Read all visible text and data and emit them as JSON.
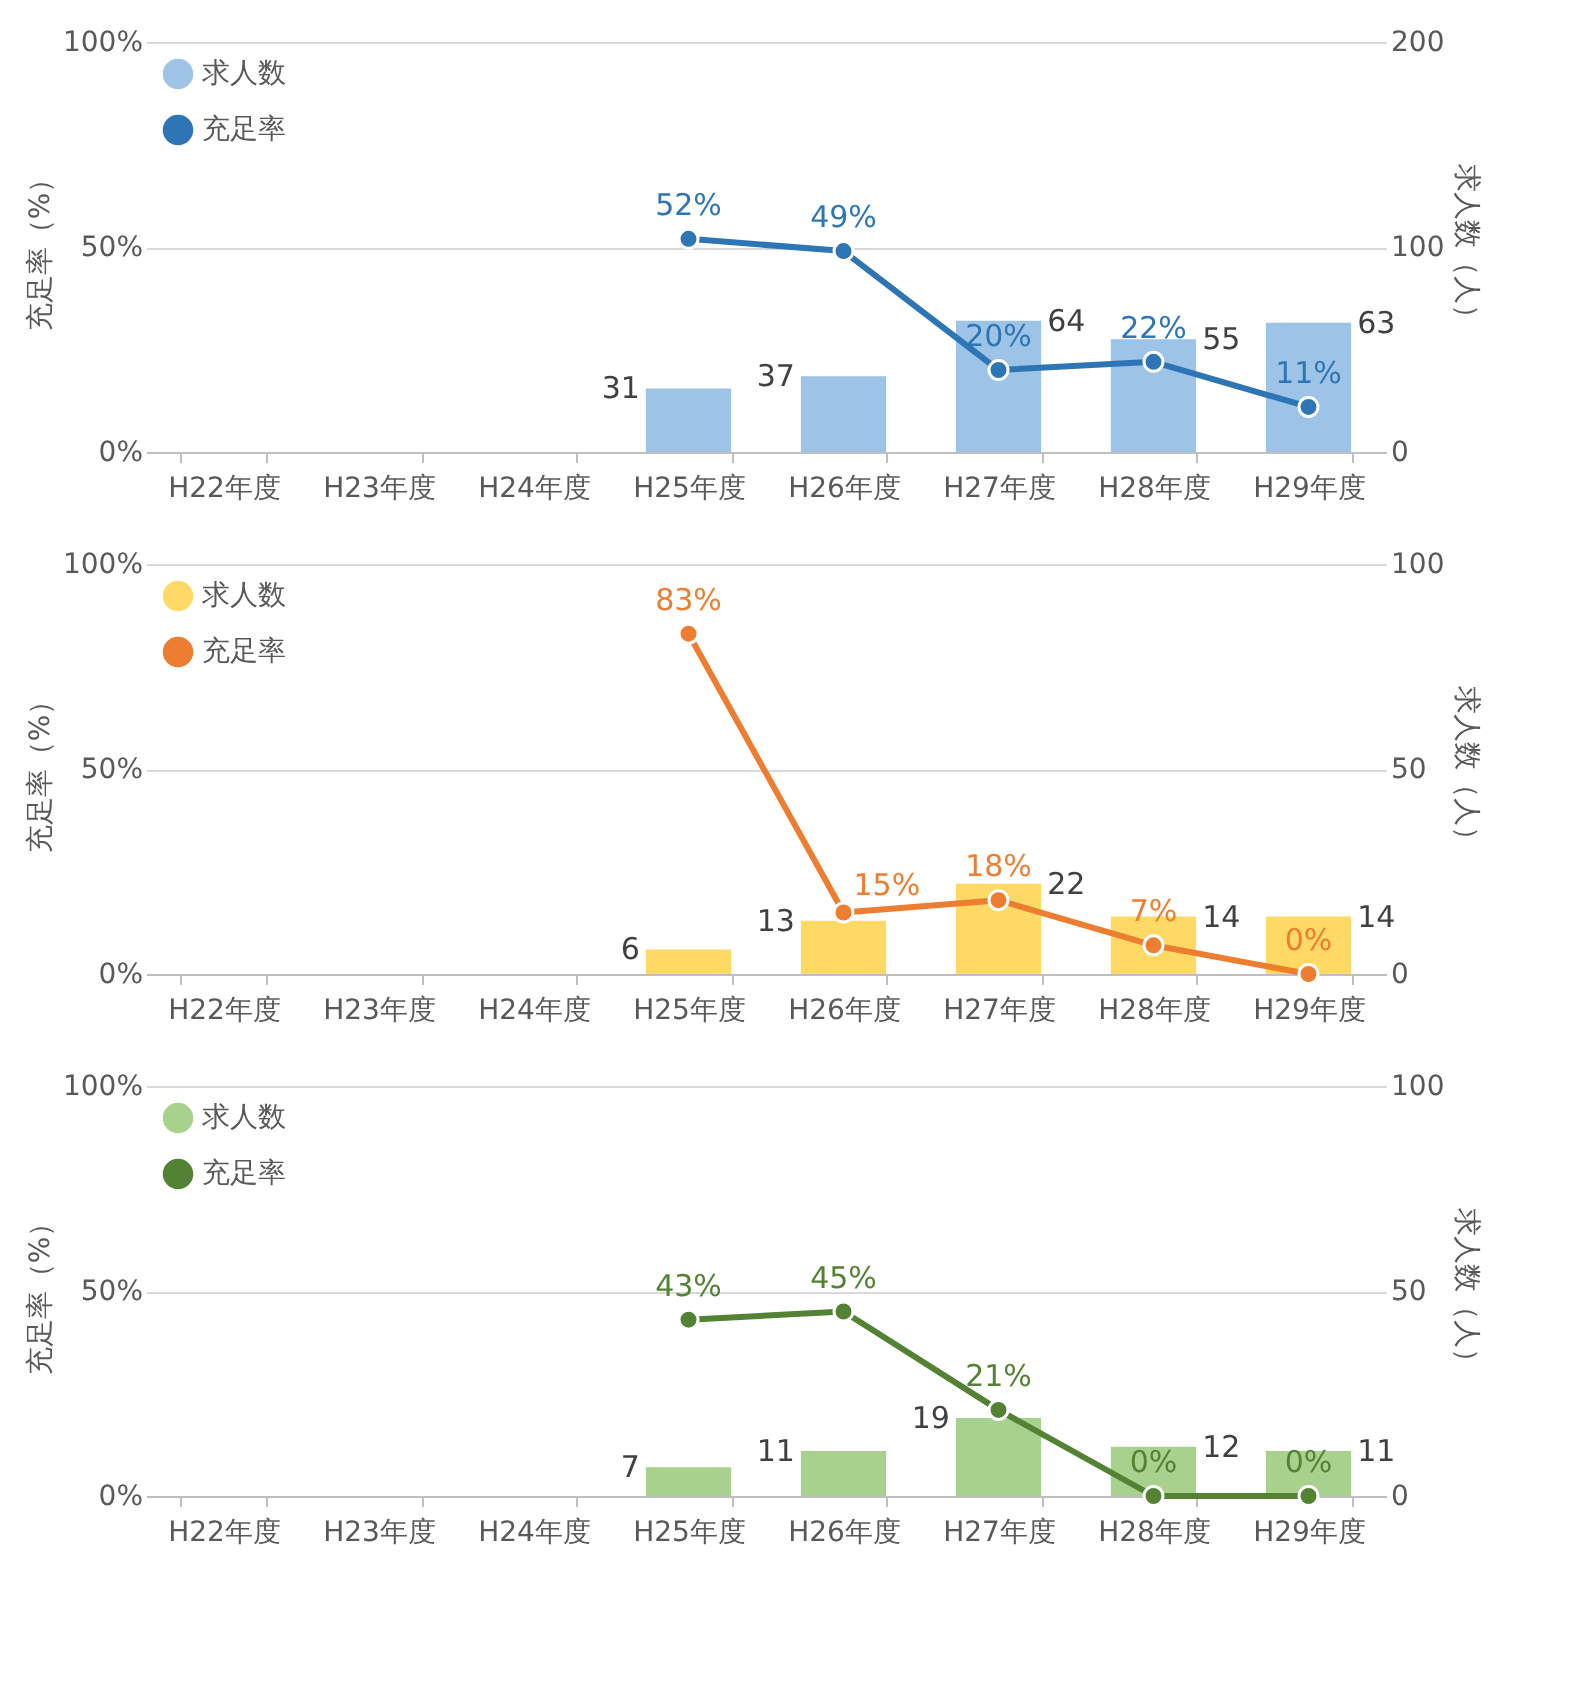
{
  "chart_data": [
    {
      "type": "bar",
      "categories": [
        "H22年度",
        "H23年度",
        "H24年度",
        "H25年度",
        "H26年度",
        "H27年度",
        "H28年度",
        "H29年度"
      ],
      "ylabel": "充足率（%）",
      "y2label": "求人数（人）",
      "ylim": [
        0,
        100
      ],
      "yticks": [
        {
          "value": 0,
          "label": "0%"
        },
        {
          "value": 50,
          "label": "50%"
        },
        {
          "value": 100,
          "label": "100%"
        }
      ],
      "y2lim": [
        0,
        200
      ],
      "y2ticks": [
        0,
        100,
        200
      ],
      "grid": "y",
      "legend": "top left",
      "marker": "circle",
      "series": [
        {
          "name": "求人数",
          "axis": "y2",
          "color": "#9dc3e6",
          "values": [
            null,
            null,
            null,
            31,
            37,
            64,
            55,
            63
          ],
          "value_labels": [
            null,
            null,
            null,
            "31",
            "37",
            "64",
            "55",
            "63"
          ]
        },
        {
          "name": "充足率",
          "type": "line",
          "color": "#2e75b6",
          "values": [
            null,
            null,
            null,
            52,
            49,
            20,
            22,
            11
          ],
          "value_labels": [
            null,
            null,
            null,
            "52%",
            "49%",
            "20%",
            "22%",
            "11%"
          ]
        }
      ]
    },
    {
      "type": "bar",
      "categories": [
        "H22年度",
        "H23年度",
        "H24年度",
        "H25年度",
        "H26年度",
        "H27年度",
        "H28年度",
        "H29年度"
      ],
      "ylabel": "充足率（%）",
      "y2label": "求人数（人）",
      "ylim": [
        0,
        100
      ],
      "yticks": [
        {
          "value": 0,
          "label": "0%"
        },
        {
          "value": 50,
          "label": "50%"
        },
        {
          "value": 100,
          "label": "100%"
        }
      ],
      "y2lim": [
        0,
        100
      ],
      "y2ticks": [
        0,
        50,
        100
      ],
      "grid": "y",
      "legend": "top left",
      "marker": "circle",
      "series": [
        {
          "name": "求人数",
          "axis": "y2",
          "color": "#ffd966",
          "values": [
            null,
            null,
            null,
            6,
            13,
            22,
            14,
            14
          ],
          "value_labels": [
            null,
            null,
            null,
            "6",
            "13",
            "22",
            "14",
            "14"
          ]
        },
        {
          "name": "充足率",
          "type": "line",
          "color": "#ed7d31",
          "values": [
            null,
            null,
            null,
            83,
            15,
            18,
            7,
            0
          ],
          "value_labels": [
            null,
            null,
            null,
            "83%",
            "15%",
            "18%",
            "7%",
            "0%"
          ]
        }
      ]
    },
    {
      "type": "bar",
      "categories": [
        "H22年度",
        "H23年度",
        "H24年度",
        "H25年度",
        "H26年度",
        "H27年度",
        "H28年度",
        "H29年度"
      ],
      "ylabel": "充足率（%）",
      "y2label": "求人数（人）",
      "ylim": [
        0,
        100
      ],
      "yticks": [
        {
          "value": 0,
          "label": "0%"
        },
        {
          "value": 50,
          "label": "50%"
        },
        {
          "value": 100,
          "label": "100%"
        }
      ],
      "y2lim": [
        0,
        100
      ],
      "y2ticks": [
        0,
        50,
        100
      ],
      "grid": "y",
      "legend": "top left",
      "marker": "circle",
      "series": [
        {
          "name": "求人数",
          "axis": "y2",
          "color": "#a9d18e",
          "values": [
            null,
            null,
            null,
            7,
            11,
            19,
            12,
            11
          ],
          "value_labels": [
            null,
            null,
            null,
            "7",
            "11",
            "19",
            "12",
            "11"
          ]
        },
        {
          "name": "充足率",
          "type": "line",
          "color": "#548235",
          "values": [
            null,
            null,
            null,
            43,
            45,
            21,
            0,
            0
          ],
          "value_labels": [
            null,
            null,
            null,
            "43%",
            "45%",
            "21%",
            "0%",
            "0%"
          ]
        }
      ]
    }
  ]
}
